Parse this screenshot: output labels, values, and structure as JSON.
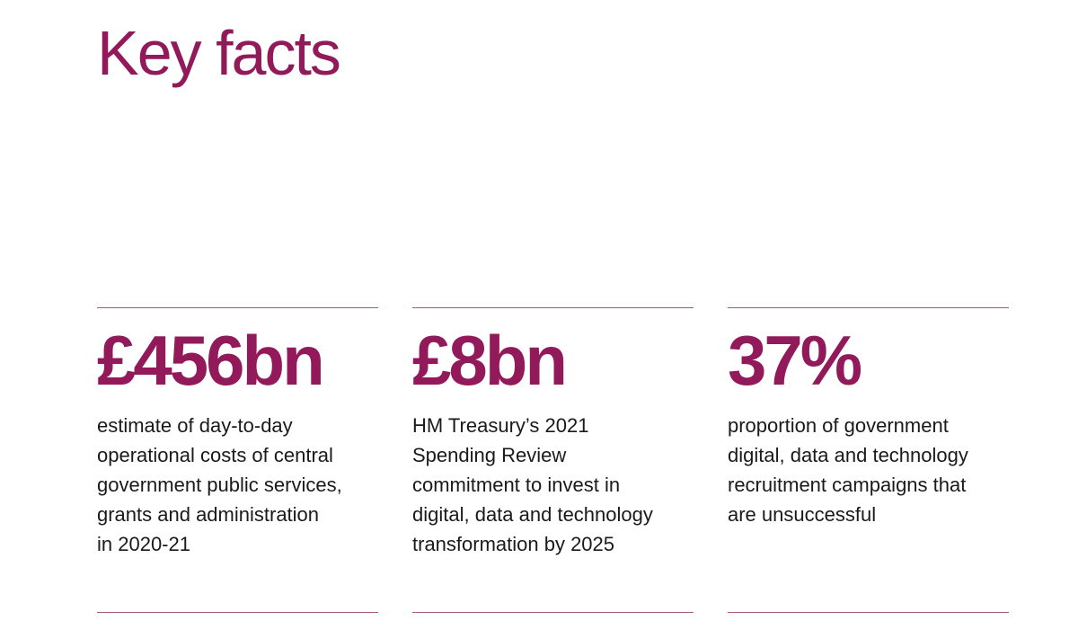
{
  "title": "Key facts",
  "colors": {
    "accent": "#921a5a",
    "rule": "#a8577f",
    "text": "#1a1a1a"
  },
  "facts": [
    {
      "figure": "£456bn",
      "description": "estimate of day-to-day\noperational costs of central\ngovernment public services,\ngrants and administration\nin 2020-21"
    },
    {
      "figure": "£8bn",
      "description": "HM Treasury’s 2021\nSpending Review\ncommitment to invest in\ndigital, data and technology\ntransformation by 2025"
    },
    {
      "figure": "37%",
      "description": "proportion of government\ndigital, data and technology\nrecruitment campaigns that\nare unsuccessful"
    }
  ]
}
